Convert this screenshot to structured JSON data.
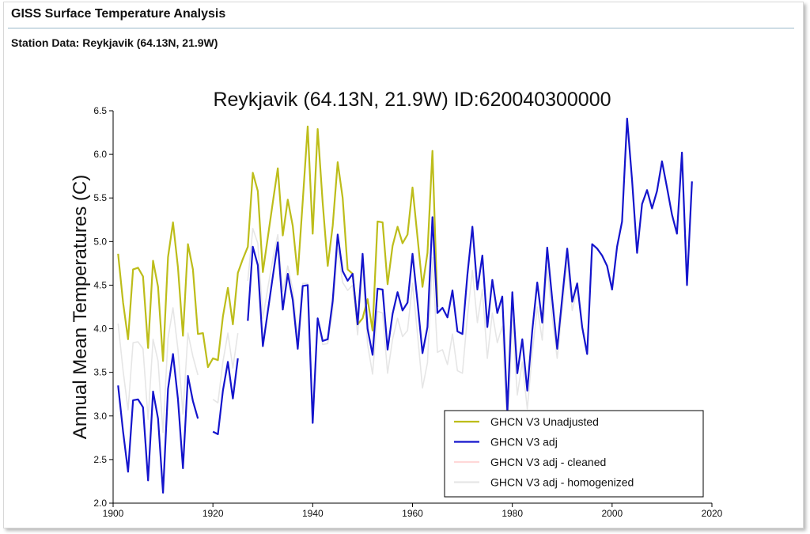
{
  "header": {
    "title": "GISS Surface Temperature Analysis",
    "subtitle": "Station Data: Reykjavik (64.13N, 21.9W)"
  },
  "chart_data": {
    "type": "line",
    "title": "Reykjavik (64.13N, 21.9W) ID:620040300000",
    "xlabel": "",
    "ylabel": "Annual Mean Temperatures (C)",
    "xlim": [
      1900,
      2020
    ],
    "ylim": [
      2.0,
      6.5
    ],
    "xticks": [
      1900,
      1920,
      1940,
      1960,
      1980,
      2000,
      2020
    ],
    "yticks": [
      2.0,
      2.5,
      3.0,
      3.5,
      4.0,
      4.5,
      5.0,
      5.5,
      6.0,
      6.5
    ],
    "grid": false,
    "legend_position": "bottom-right",
    "series": [
      {
        "name": "GHCN V3 Unadjusted",
        "color": "#bdbd1a",
        "segments": [
          [
            [
              1901,
              4.86
            ],
            [
              1902,
              4.3
            ],
            [
              1903,
              3.88
            ],
            [
              1904,
              4.68
            ],
            [
              1905,
              4.7
            ],
            [
              1906,
              4.6
            ],
            [
              1907,
              3.78
            ],
            [
              1908,
              4.78
            ],
            [
              1909,
              4.48
            ],
            [
              1910,
              3.63
            ],
            [
              1911,
              4.82
            ],
            [
              1912,
              5.22
            ],
            [
              1913,
              4.7
            ],
            [
              1914,
              3.92
            ],
            [
              1915,
              4.97
            ],
            [
              1916,
              4.68
            ],
            [
              1917,
              3.94
            ],
            [
              1918,
              3.95
            ],
            [
              1919,
              3.56
            ],
            [
              1920,
              3.66
            ],
            [
              1921,
              3.64
            ],
            [
              1922,
              4.14
            ],
            [
              1923,
              4.47
            ],
            [
              1924,
              4.05
            ],
            [
              1925,
              4.64
            ],
            [
              1926,
              4.8
            ],
            [
              1927,
              4.94
            ],
            [
              1928,
              5.79
            ],
            [
              1929,
              5.58
            ],
            [
              1930,
              4.65
            ],
            [
              1931,
              5.05
            ],
            [
              1932,
              5.45
            ],
            [
              1933,
              5.84
            ],
            [
              1934,
              5.07
            ],
            [
              1935,
              5.48
            ],
            [
              1936,
              5.18
            ],
            [
              1937,
              4.62
            ],
            [
              1938,
              5.46
            ],
            [
              1939,
              6.32
            ],
            [
              1940,
              5.09
            ],
            [
              1941,
              6.29
            ],
            [
              1942,
              5.45
            ],
            [
              1943,
              4.72
            ],
            [
              1944,
              5.18
            ],
            [
              1945,
              5.91
            ],
            [
              1946,
              5.5
            ],
            [
              1947,
              4.68
            ],
            [
              1948,
              4.63
            ],
            [
              1949,
              4.05
            ],
            [
              1950,
              4.12
            ],
            [
              1951,
              4.34
            ],
            [
              1952,
              3.98
            ],
            [
              1953,
              5.23
            ],
            [
              1954,
              5.22
            ],
            [
              1955,
              4.51
            ],
            [
              1956,
              4.95
            ],
            [
              1957,
              5.17
            ],
            [
              1958,
              4.98
            ],
            [
              1959,
              5.08
            ],
            [
              1960,
              5.62
            ],
            [
              1961,
              5.05
            ],
            [
              1962,
              4.48
            ],
            [
              1963,
              4.87
            ],
            [
              1964,
              6.04
            ],
            [
              1965,
              4.25
            ]
          ]
        ]
      },
      {
        "name": "GHCN V3 adj",
        "color": "#1414cc",
        "segments": [
          [
            [
              1901,
              3.35
            ],
            [
              1902,
              2.82
            ],
            [
              1903,
              2.36
            ],
            [
              1904,
              3.18
            ],
            [
              1905,
              3.19
            ],
            [
              1906,
              3.1
            ],
            [
              1907,
              2.26
            ],
            [
              1908,
              3.28
            ],
            [
              1909,
              2.97
            ],
            [
              1910,
              2.12
            ],
            [
              1911,
              3.31
            ],
            [
              1912,
              3.71
            ],
            [
              1913,
              3.19
            ],
            [
              1914,
              2.4
            ],
            [
              1915,
              3.46
            ],
            [
              1916,
              3.17
            ],
            [
              1917,
              2.97
            ]
          ],
          [
            [
              1920,
              2.82
            ],
            [
              1921,
              2.79
            ],
            [
              1922,
              3.29
            ],
            [
              1923,
              3.62
            ],
            [
              1924,
              3.2
            ],
            [
              1925,
              3.66
            ]
          ],
          [
            [
              1927,
              4.09
            ],
            [
              1928,
              4.94
            ],
            [
              1929,
              4.73
            ],
            [
              1930,
              3.8
            ],
            [
              1931,
              4.2
            ],
            [
              1932,
              4.6
            ],
            [
              1933,
              4.99
            ],
            [
              1934,
              4.22
            ],
            [
              1935,
              4.63
            ],
            [
              1936,
              4.33
            ],
            [
              1937,
              3.77
            ],
            [
              1938,
              4.49
            ],
            [
              1939,
              4.5
            ],
            [
              1940,
              2.92
            ],
            [
              1941,
              4.12
            ],
            [
              1942,
              3.86
            ],
            [
              1943,
              3.88
            ],
            [
              1944,
              4.32
            ],
            [
              1945,
              5.08
            ],
            [
              1946,
              4.66
            ],
            [
              1947,
              4.55
            ],
            [
              1948,
              4.63
            ],
            [
              1949,
              4.05
            ],
            [
              1950,
              4.86
            ],
            [
              1951,
              4.0
            ],
            [
              1952,
              3.7
            ],
            [
              1953,
              4.46
            ],
            [
              1954,
              4.45
            ],
            [
              1955,
              3.76
            ],
            [
              1956,
              4.17
            ],
            [
              1957,
              4.42
            ],
            [
              1958,
              4.21
            ],
            [
              1959,
              4.3
            ],
            [
              1960,
              4.86
            ],
            [
              1961,
              4.31
            ],
            [
              1962,
              3.72
            ],
            [
              1963,
              4.02
            ],
            [
              1964,
              5.28
            ],
            [
              1965,
              4.18
            ],
            [
              1966,
              4.24
            ],
            [
              1967,
              4.13
            ],
            [
              1968,
              4.44
            ],
            [
              1969,
              3.97
            ],
            [
              1970,
              3.94
            ],
            [
              1971,
              4.62
            ],
            [
              1972,
              5.17
            ],
            [
              1973,
              4.45
            ],
            [
              1974,
              4.84
            ],
            [
              1975,
              4.02
            ],
            [
              1976,
              4.56
            ],
            [
              1977,
              4.18
            ],
            [
              1978,
              4.37
            ],
            [
              1979,
              3.05
            ],
            [
              1980,
              4.42
            ],
            [
              1981,
              3.49
            ],
            [
              1982,
              3.88
            ],
            [
              1983,
              3.29
            ],
            [
              1984,
              3.98
            ],
            [
              1985,
              4.53
            ],
            [
              1986,
              4.07
            ],
            [
              1987,
              4.93
            ],
            [
              1988,
              4.34
            ],
            [
              1989,
              3.77
            ],
            [
              1990,
              4.36
            ],
            [
              1991,
              4.92
            ],
            [
              1992,
              4.31
            ],
            [
              1993,
              4.52
            ],
            [
              1994,
              4.02
            ],
            [
              1995,
              3.71
            ],
            [
              1996,
              4.97
            ],
            [
              1997,
              4.92
            ],
            [
              1998,
              4.84
            ],
            [
              1999,
              4.72
            ],
            [
              2000,
              4.45
            ],
            [
              2001,
              4.94
            ],
            [
              2002,
              5.23
            ],
            [
              2003,
              6.41
            ],
            [
              2004,
              5.7
            ],
            [
              2005,
              4.87
            ],
            [
              2006,
              5.43
            ],
            [
              2007,
              5.59
            ],
            [
              2008,
              5.38
            ],
            [
              2009,
              5.58
            ],
            [
              2010,
              5.92
            ],
            [
              2011,
              5.62
            ],
            [
              2012,
              5.31
            ],
            [
              2013,
              5.09
            ],
            [
              2014,
              6.02
            ],
            [
              2015,
              4.5
            ],
            [
              2016,
              5.69
            ]
          ]
        ]
      },
      {
        "name": "GHCN V3 adj - cleaned",
        "color": "#ffd8d8",
        "segments": []
      },
      {
        "name": "GHCN V3 adj - homogenized",
        "color": "#e6e6e6",
        "segments": [
          [
            [
              1901,
              4.06
            ],
            [
              1902,
              3.52
            ],
            [
              1903,
              3.07
            ],
            [
              1904,
              3.84
            ],
            [
              1905,
              3.85
            ],
            [
              1906,
              3.77
            ],
            [
              1907,
              2.96
            ],
            [
              1908,
              3.88
            ],
            [
              1909,
              3.63
            ],
            [
              1910,
              2.81
            ],
            [
              1911,
              3.89
            ],
            [
              1912,
              4.24
            ],
            [
              1913,
              3.76
            ],
            [
              1914,
              3.02
            ],
            [
              1915,
              3.95
            ],
            [
              1916,
              3.68
            ],
            [
              1917,
              3.47
            ]
          ],
          [
            [
              1920,
              3.19
            ],
            [
              1921,
              3.15
            ],
            [
              1922,
              3.62
            ],
            [
              1923,
              3.95
            ],
            [
              1924,
              3.55
            ],
            [
              1925,
              3.95
            ]
          ],
          [
            [
              1927,
              4.55
            ],
            [
              1928,
              5.15
            ],
            [
              1929,
              4.98
            ],
            [
              1930,
              4.12
            ],
            [
              1931,
              4.47
            ],
            [
              1932,
              4.8
            ],
            [
              1933,
              5.08
            ],
            [
              1934,
              4.43
            ],
            [
              1935,
              4.72
            ],
            [
              1936,
              4.45
            ],
            [
              1937,
              3.91
            ],
            [
              1938,
              4.52
            ],
            [
              1939,
              4.52
            ],
            [
              1940,
              3.05
            ],
            [
              1941,
              4.1
            ],
            [
              1942,
              3.82
            ],
            [
              1943,
              3.83
            ],
            [
              1944,
              4.21
            ],
            [
              1945,
              4.92
            ],
            [
              1946,
              4.53
            ],
            [
              1947,
              4.44
            ],
            [
              1948,
              4.5
            ],
            [
              1949,
              3.93
            ],
            [
              1950,
              4.7
            ],
            [
              1951,
              3.82
            ],
            [
              1952,
              3.48
            ],
            [
              1953,
              4.2
            ],
            [
              1954,
              4.18
            ],
            [
              1955,
              3.49
            ],
            [
              1956,
              3.88
            ],
            [
              1957,
              4.12
            ],
            [
              1958,
              3.91
            ],
            [
              1959,
              3.98
            ],
            [
              1960,
              4.52
            ],
            [
              1961,
              3.94
            ],
            [
              1962,
              3.32
            ],
            [
              1963,
              3.61
            ],
            [
              1964,
              4.82
            ],
            [
              1965,
              3.73
            ],
            [
              1966,
              3.76
            ],
            [
              1967,
              3.59
            ],
            [
              1968,
              3.94
            ],
            [
              1969,
              3.52
            ],
            [
              1970,
              3.49
            ],
            [
              1971,
              4.14
            ],
            [
              1972,
              4.67
            ],
            [
              1973,
              4.07
            ],
            [
              1974,
              4.45
            ],
            [
              1975,
              3.66
            ],
            [
              1976,
              4.18
            ],
            [
              1977,
              3.84
            ],
            [
              1978,
              4.03
            ],
            [
              1979,
              2.78
            ],
            [
              1980,
              4.1
            ],
            [
              1981,
              3.24
            ],
            [
              1982,
              3.62
            ],
            [
              1983,
              3.08
            ],
            [
              1984,
              3.72
            ],
            [
              1985,
              4.25
            ],
            [
              1986,
              3.87
            ],
            [
              1987,
              4.72
            ],
            [
              1988,
              4.13
            ],
            [
              1989,
              3.66
            ],
            [
              1990,
              4.22
            ],
            [
              1991,
              4.79
            ],
            [
              1992,
              4.21
            ],
            [
              1993,
              4.45
            ]
          ]
        ]
      }
    ]
  }
}
